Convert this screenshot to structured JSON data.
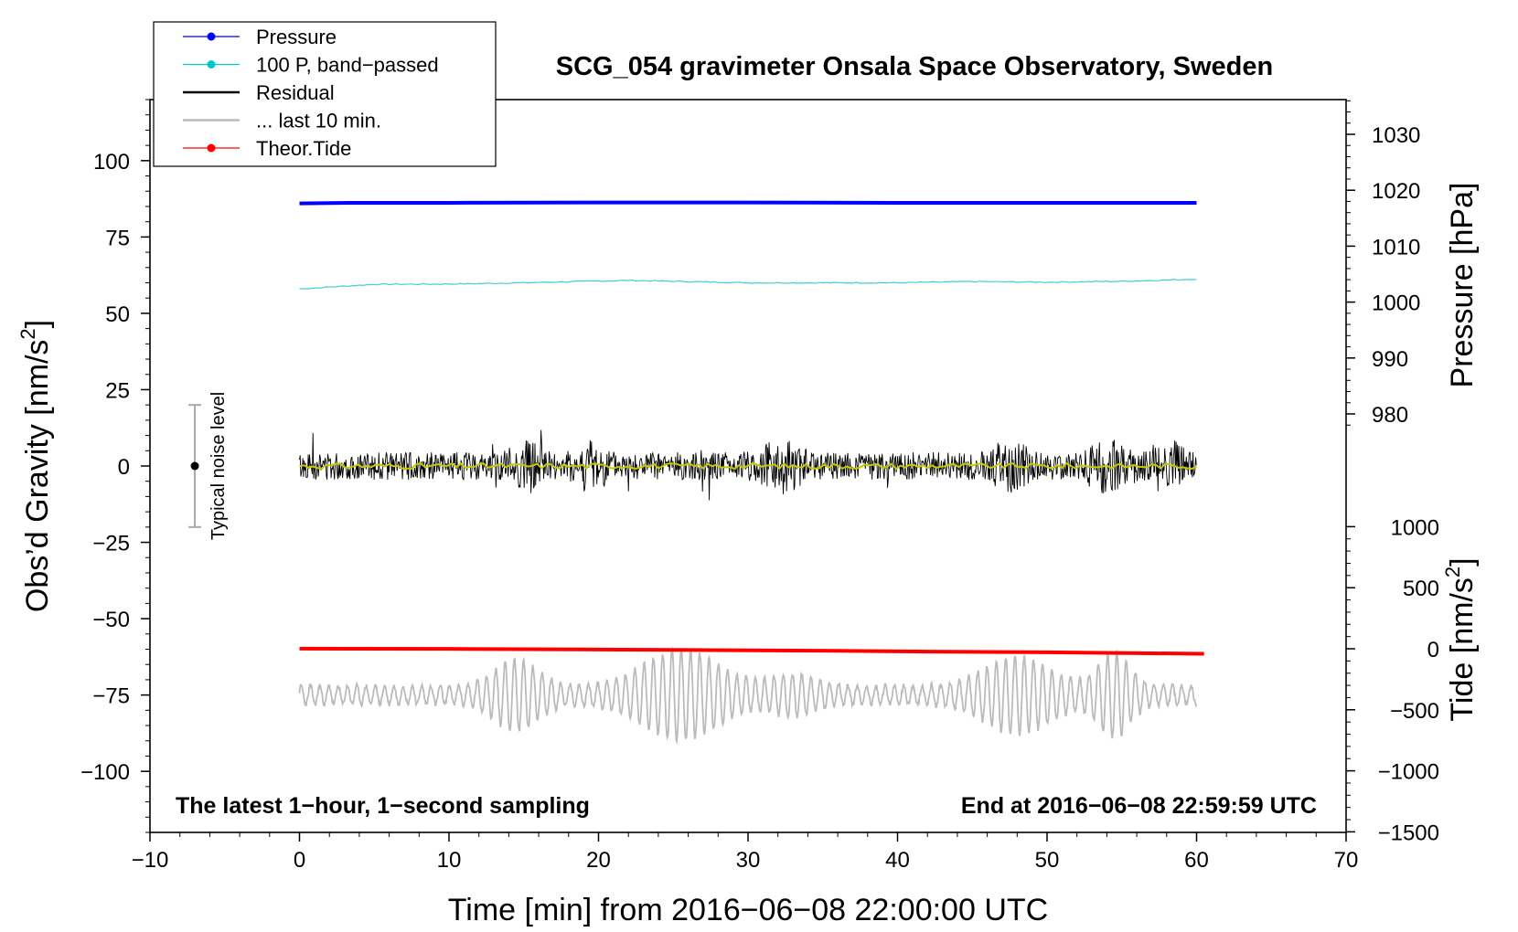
{
  "chart_data": {
    "type": "line",
    "title": "SCG_054 gravimeter Onsala Space Observatory, Sweden",
    "xlabel": "Time [min] from 2016−06−08 22:00:00 UTC",
    "xlim": [
      -10,
      70
    ],
    "xticks": [
      -10,
      0,
      10,
      20,
      30,
      40,
      50,
      60,
      70
    ],
    "xtick_labels": [
      "−10",
      "0",
      "10",
      "20",
      "30",
      "40",
      "50",
      "60",
      "70"
    ],
    "left_axis": {
      "label_main": "Obs’d Gravity [nm/s",
      "label_sup": "2",
      "label_end": "]",
      "ylim": [
        -120,
        120
      ],
      "ticks": [
        100,
        75,
        50,
        25,
        0,
        -25,
        -50,
        -75,
        -100
      ],
      "tick_labels": [
        "100",
        "75",
        "50",
        "25",
        "0",
        "−25",
        "−50",
        "−75",
        "−100"
      ]
    },
    "pressure_axis": {
      "label": "Pressure [hPa]",
      "ticks": [
        1030,
        1020,
        1010,
        1000,
        990,
        980
      ],
      "tick_labels": [
        "1030",
        "1020",
        "1010",
        "1000",
        "990",
        "980"
      ]
    },
    "tide_axis": {
      "label_main": "Tide [nm/s",
      "label_sup": "2",
      "label_end": "]",
      "ticks": [
        1000,
        500,
        0,
        -500,
        -1000,
        -1500
      ],
      "tick_labels": [
        "1000",
        "500",
        "0",
        "−500",
        "−1000",
        "−1500"
      ]
    },
    "legend": {
      "position": "top-left",
      "entries": [
        {
          "label": "Pressure",
          "color": "#0000ff",
          "marker": true
        },
        {
          "label": "100 P, band−passed",
          "color": "#00c8c8",
          "marker": true
        },
        {
          "label": "Residual",
          "color": "#000000",
          "marker": false
        },
        {
          "label": "... last 10 min.",
          "color": "#bbbbbb",
          "marker": false
        },
        {
          "label": "Theor.Tide",
          "color": "#ff0000",
          "marker": true
        }
      ]
    },
    "noise_indicator": {
      "label": "Typical noise level",
      "x": -7,
      "center": 0,
      "range": [
        -20,
        20
      ]
    },
    "series": [
      {
        "name": "Pressure",
        "color": "#0000ff",
        "axis": "left",
        "t": [
          0,
          3.5,
          10,
          20,
          30,
          40,
          50,
          60
        ],
        "values": [
          86,
          86.2,
          86.2,
          86.3,
          86.3,
          86.2,
          86.2,
          86.2
        ]
      },
      {
        "name": "100 P, band-passed",
        "color": "#40d0d0",
        "axis": "left",
        "t": [
          0,
          5,
          10,
          15,
          22,
          30,
          40,
          45,
          50,
          55,
          60
        ],
        "values": [
          58,
          59.5,
          59.6,
          60,
          60.8,
          60,
          60,
          60.4,
          60.2,
          60.5,
          61.2
        ]
      },
      {
        "name": "Residual",
        "color": "#000000",
        "axis": "left",
        "t_range": [
          0,
          60
        ],
        "amplitude_approx": 12,
        "center": 0,
        "mean_color": "#c8c800"
      },
      {
        "name": "... last 10 min.",
        "color": "#bbbbbb",
        "axis": "left",
        "t_range": [
          0,
          60
        ],
        "center": -75,
        "amplitude_approx": 13
      },
      {
        "name": "Theor.Tide",
        "color": "#ff0000",
        "axis": "left",
        "t": [
          0,
          10,
          20,
          27.5,
          35,
          42,
          50,
          60.5
        ],
        "values": [
          -59.8,
          -59.9,
          -60.1,
          -60.3,
          -60.5,
          -60.8,
          -61,
          -61.5
        ]
      }
    ],
    "annotations": {
      "bottom_left": "The latest 1−hour, 1−second sampling",
      "bottom_right": "End at 2016−06−08 22:59:59 UTC"
    },
    "grid": false
  }
}
